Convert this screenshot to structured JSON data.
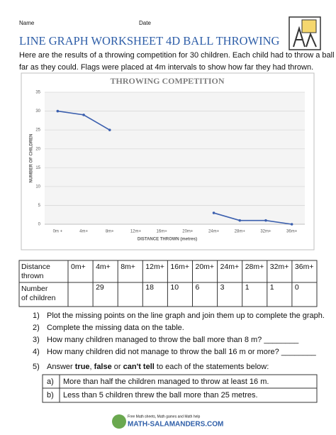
{
  "header": {
    "name_label": "Name",
    "date_label": "Date",
    "title": "LINE GRAPH WORKSHEET 4D BALL THROWING",
    "intro": [
      "Here are the results of a throwing competition for 30 children. Each child had to throw a ball a",
      "far as they could. Flags were placed at 4m intervals to show how far they had thrown."
    ]
  },
  "chart_data": {
    "type": "line",
    "title": "THROWING COMPETITION",
    "x_label": "DISTANCE THROWN (metres)",
    "y_label": "NUMBER OF CHILDREN",
    "categories": [
      "0m +",
      "4m+",
      "8m+",
      "12m+",
      "16m+",
      "20m+",
      "24m+",
      "28m+",
      "32m+",
      "36m+"
    ],
    "series": [
      {
        "color": "#3b5fae",
        "values": [
          30,
          29,
          25,
          null,
          null,
          null,
          3,
          1,
          1,
          0
        ]
      }
    ],
    "ylim": [
      0,
      35
    ],
    "yticks": [
      0,
      5,
      10,
      15,
      20,
      25,
      30,
      35
    ],
    "grid": true
  },
  "table": {
    "rows": [
      [
        "Distance thrown",
        "0m+",
        "4m+",
        "8m+",
        "12m+",
        "16m+",
        "20m+",
        "24m+",
        "28m+",
        "32m+",
        "36m+"
      ],
      [
        "Number of children",
        null,
        "29",
        null,
        "18",
        "10",
        "6",
        "3",
        "1",
        "1",
        "0"
      ]
    ]
  },
  "questions": [
    {
      "number": "1)",
      "text": "Plot the missing points on the line graph and join them up to complete the graph."
    },
    {
      "number": "2)",
      "text": "Complete the missing data on the table."
    },
    {
      "number": "3)",
      "text": "How many children managed to throw the ball more than 8 m? ________"
    },
    {
      "number": "4)",
      "text": "How many children did not manage to throw the ball 16 m or more? ________"
    },
    {
      "number": "5)",
      "parts": [
        "Answer ",
        "true",
        ", ",
        "false",
        " or ",
        "can't tell",
        " to each of the statements below:"
      ]
    }
  ],
  "statements": [
    {
      "letter": "a)",
      "text": "More than half the children managed to throw at least 16 m."
    },
    {
      "letter": "b)",
      "text": "Less than 5 children threw the ball more than 25 metres."
    }
  ],
  "footer": {
    "tagline": "Free Math sheets, Math games and Math help",
    "site": "MATH-SALAMANDERS.COM"
  }
}
